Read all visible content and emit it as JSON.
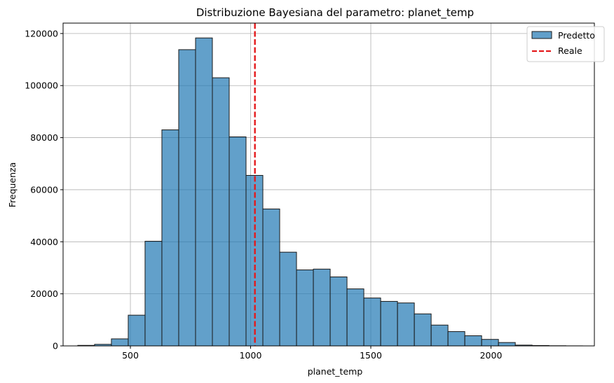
{
  "chart_data": {
    "type": "bar",
    "title": "Distribuzione Bayesiana del parametro: planet_temp",
    "xlabel": "planet_temp",
    "ylabel": "Frequenza",
    "xlim": [
      220,
      2430
    ],
    "ylim": [
      0,
      124000
    ],
    "xticks": [
      500,
      1000,
      1500,
      2000
    ],
    "yticks": [
      0,
      20000,
      40000,
      60000,
      80000,
      100000,
      120000
    ],
    "grid": true,
    "legend_position": "top-right",
    "bin_edges": [
      281,
      351,
      421,
      491,
      561,
      631,
      701,
      771,
      841,
      911,
      981,
      1051,
      1121,
      1191,
      1261,
      1331,
      1401,
      1471,
      1541,
      1611,
      1681,
      1751,
      1821,
      1891,
      1961,
      2031,
      2101,
      2171,
      2241,
      2311,
      2381
    ],
    "series": [
      {
        "name": "Predetto",
        "kind": "histogram",
        "color": "#1f77b4",
        "edgecolor": "#1a1a1a",
        "values": [
          200,
          600,
          2700,
          11800,
          40200,
          83000,
          113800,
          118300,
          103000,
          80300,
          65500,
          52600,
          36000,
          29200,
          29500,
          26500,
          21900,
          18400,
          17100,
          16500,
          12300,
          8000,
          5500,
          3900,
          2500,
          1300,
          300,
          150,
          60,
          20
        ]
      },
      {
        "name": "Reale",
        "kind": "vline",
        "color": "#e41a1c",
        "x": 1018
      }
    ]
  }
}
